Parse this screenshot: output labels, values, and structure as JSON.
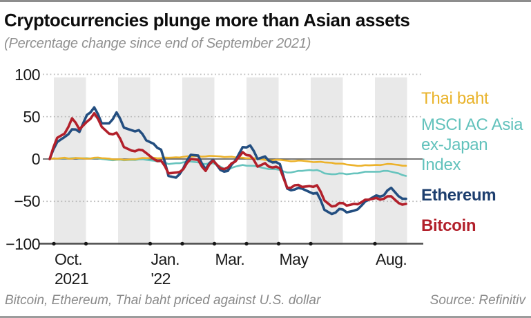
{
  "header": {
    "title": "Cryptocurrencies plunge more than Asian assets",
    "subtitle": "(Percentage change since end of September 2021)"
  },
  "legend": [
    {
      "label": "Thai baht",
      "color": "#e9b32a"
    },
    {
      "label": "MSCI AC Asia ex-Japan Index",
      "color": "#62c2bc"
    },
    {
      "label": "Ethereum",
      "color": "#1d3e6e"
    },
    {
      "label": "Bitcoin",
      "color": "#b2202b"
    }
  ],
  "footer": {
    "note": "Bitcoin, Ethereum, Thai baht priced against U.S. dollar",
    "source": "Source: Refinitiv"
  },
  "chart_data": {
    "type": "line",
    "title": "Cryptocurrencies plunge more than Asian assets",
    "subtitle": "(Percentage change since end of September 2021)",
    "ylabel": "Percentage change since end of September 2021",
    "ylim": [
      -100,
      100
    ],
    "grid": "dotted horizontal at 100, 50, -50; solid zero line; shaded alternate months",
    "legend_position": "right",
    "x_unit": "weekly points, 2021-09-30 through 2022-08-26",
    "y_ticks": [
      {
        "v": 100,
        "label": "100"
      },
      {
        "v": 50,
        "label": "50"
      },
      {
        "v": 0,
        "label": "0"
      },
      {
        "v": -50,
        "label": "−50"
      },
      {
        "v": -100,
        "label": "−100"
      }
    ],
    "x_tick_labels": [
      {
        "label": "Oct.",
        "sub": "2021",
        "month": 0
      },
      {
        "label": "Jan.",
        "sub": "'22",
        "month": 3
      },
      {
        "label": "Mar.",
        "sub": "",
        "month": 5
      },
      {
        "label": "May",
        "sub": "",
        "month": 7
      },
      {
        "label": "Aug.",
        "sub": "",
        "month": 10
      }
    ],
    "shaded_months": [
      0,
      2,
      4,
      6,
      8,
      10
    ],
    "axis_dot_months": [
      0,
      1,
      3,
      4,
      5,
      6,
      7,
      8,
      10
    ],
    "series": [
      {
        "name": "MSCI AC Asia ex-Japan Index",
        "color": "#68c4be",
        "values": [
          0,
          0.5,
          1,
          1,
          0.5,
          1,
          1,
          0,
          -1,
          -1,
          -1.5,
          -1,
          -0.5,
          -1,
          -2,
          -3,
          -6,
          -5,
          -4,
          -3,
          -4,
          -6,
          -5,
          -9,
          -13,
          -9,
          -7,
          -8,
          -9,
          -11,
          -12,
          -13,
          -16,
          -15,
          -14,
          -13,
          -13,
          -17,
          -18,
          -17,
          -18,
          -17,
          -16,
          -15,
          -15,
          -14,
          -15,
          -17,
          -20
        ]
      },
      {
        "name": "Thai baht",
        "color": "#ecb22b",
        "values": [
          0,
          0.5,
          1.5,
          0.5,
          1,
          0.5,
          1.5,
          1,
          0.5,
          -0.5,
          -1,
          -0.5,
          0.5,
          1,
          1.5,
          1,
          1.5,
          2,
          2.5,
          3,
          3.5,
          3,
          3.5,
          3,
          2.5,
          2,
          1.5,
          1,
          0,
          -1,
          -1.5,
          -1,
          -2,
          -2.5,
          -2,
          -3,
          -3.5,
          -4,
          -4.5,
          -5.5,
          -6.5,
          -7.5,
          -8,
          -7.5,
          -7,
          -6.5,
          -6,
          -7,
          -8
        ]
      },
      {
        "name": "Ethereum",
        "color": "#234e80",
        "values": [
          0,
          20,
          26,
          35,
          32,
          52,
          61,
          42,
          42,
          55,
          37,
          34,
          34,
          22,
          18,
          11,
          -20,
          -22,
          -11,
          5,
          4,
          -12,
          -1,
          -13,
          -14,
          -2,
          14,
          16,
          0,
          3,
          -4,
          -6,
          -35,
          -36,
          -35,
          -39,
          -40,
          -60,
          -65,
          -59,
          -63,
          -61,
          -55,
          -48,
          -43,
          -43,
          -34,
          -44,
          -47
        ]
      },
      {
        "name": "Bitcoin",
        "color": "#b2202b",
        "values": [
          0,
          25,
          30,
          48,
          35,
          44,
          54,
          38,
          30,
          31,
          14,
          10,
          11,
          7,
          0,
          -2,
          -17,
          -16,
          -12,
          0,
          -1,
          -14,
          -2,
          -11,
          -10,
          -3,
          8,
          4,
          -9,
          -5,
          -10,
          -11,
          -34,
          -31,
          -33,
          -32,
          -31,
          -49,
          -56,
          -52,
          -55,
          -53,
          -51,
          -48,
          -46,
          -47,
          -44,
          -52,
          -53
        ]
      }
    ]
  }
}
